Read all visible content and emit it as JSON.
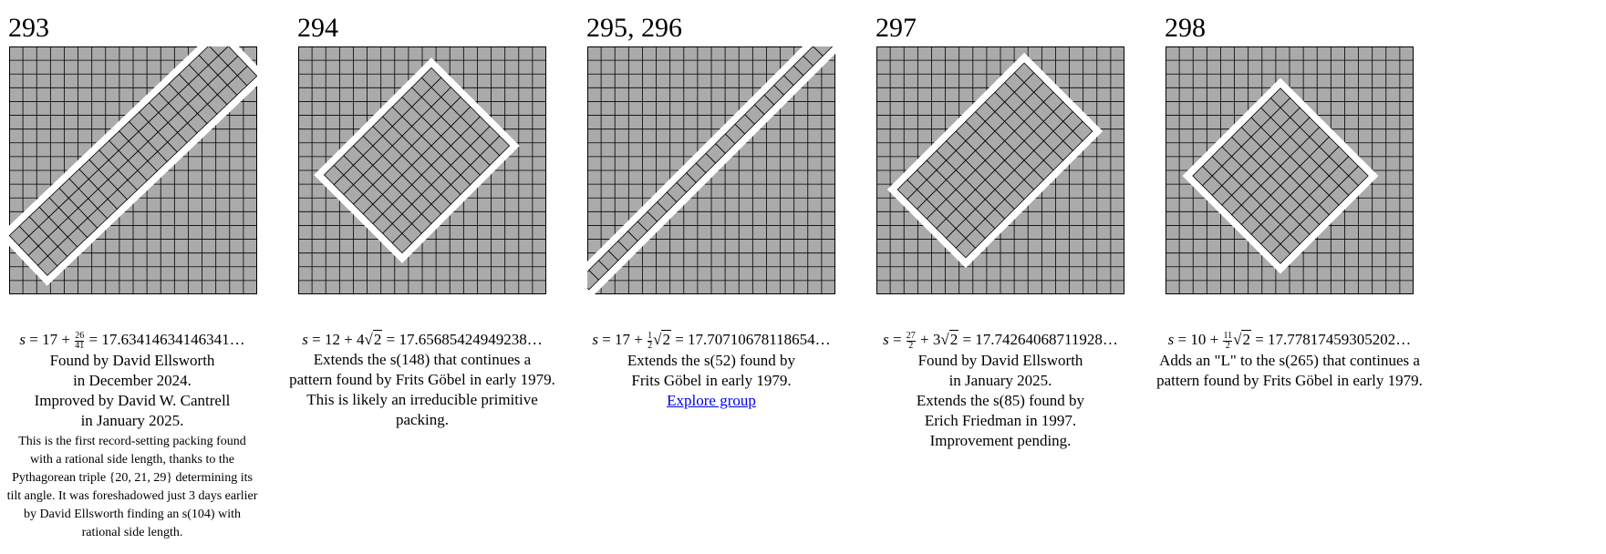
{
  "panels": [
    {
      "id": "293",
      "title": "293",
      "formula": {
        "prefix": "s = 17 + ",
        "frac_num": "26",
        "frac_den": "41",
        "sqrt": "",
        "suffix": " = 17.63414634146341…"
      },
      "lines": [
        "Found by David Ellsworth",
        "in December 2024.",
        "Improved by David W. Cantrell",
        "in January 2025."
      ],
      "note": "This is the first record-setting packing found with a rational side length, thanks to the Pythagorean triple {20, 21, 29} determining its tilt angle. It was foreshadowed just 3 days earlier by David Ellsworth finding an s(104) with rational side length.",
      "link": ""
    },
    {
      "id": "294",
      "title": "294",
      "formula": {
        "prefix": "s = 12 + 4",
        "frac_num": "",
        "frac_den": "",
        "sqrt": "2",
        "suffix": " = 17.65685424949238…"
      },
      "lines": [
        "Extends the s(148) that continues a",
        "pattern found by Frits Göbel in early 1979.",
        "This is likely an irreducible primitive",
        "packing."
      ],
      "note": "",
      "link": ""
    },
    {
      "id": "295-296",
      "title": "295, 296",
      "formula": {
        "prefix": "s = 17 + ",
        "frac_num": "1",
        "frac_den": "2",
        "sqrt": "2",
        "suffix": " = 17.70710678118654…"
      },
      "lines": [
        "Extends the s(52) found by",
        "Frits Göbel in early 1979."
      ],
      "note": "",
      "link": "Explore group"
    },
    {
      "id": "297",
      "title": "297",
      "formula": {
        "prefix": "s = ",
        "frac_num": "27",
        "frac_den": "2",
        "sqrt": "2",
        "suffix": " = 17.74264068711928…",
        "mid": " + 3"
      },
      "lines": [
        "Found by David Ellsworth",
        "in January 2025.",
        "Extends the s(85) found by",
        "Erich Friedman in 1997.",
        "Improvement pending."
      ],
      "note": "",
      "link": ""
    },
    {
      "id": "298",
      "title": "298",
      "formula": {
        "prefix": "s = 10 + ",
        "frac_num": "11",
        "frac_den": "2",
        "sqrt": "2",
        "suffix": " = 17.77817459305202…"
      },
      "lines": [
        "Adds an \"L\" to the s(265) that continues a",
        "pattern found by Frits Göbel in early 1979."
      ],
      "note": "",
      "link": ""
    }
  ],
  "colors": {
    "square_fill": "#aaaaaa",
    "stroke": "#000000",
    "gap": "#ffffff",
    "link": "#0000ee"
  }
}
